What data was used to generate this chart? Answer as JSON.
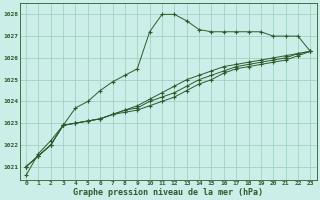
{
  "x": [
    0,
    1,
    2,
    3,
    4,
    5,
    6,
    7,
    8,
    9,
    10,
    11,
    12,
    13,
    14,
    15,
    16,
    17,
    18,
    19,
    20,
    21,
    22,
    23
  ],
  "line1": [
    1020.6,
    1021.6,
    1022.2,
    1022.9,
    1023.7,
    1024.0,
    1024.5,
    1024.9,
    1025.2,
    1025.5,
    1027.2,
    1028.0,
    1028.0,
    1027.7,
    1027.3,
    1027.2,
    1027.2,
    1027.2,
    1027.2,
    1027.2,
    1027.0,
    1027.0,
    1027.0,
    1026.3
  ],
  "line2": [
    1021.0,
    1021.5,
    1022.0,
    1022.9,
    1023.0,
    1023.1,
    1023.2,
    1023.4,
    1023.5,
    1023.6,
    1023.8,
    1024.0,
    1024.2,
    1024.5,
    1024.8,
    1025.0,
    1025.3,
    1025.5,
    1025.6,
    1025.7,
    1025.8,
    1025.9,
    1026.1,
    1026.3
  ],
  "line3": [
    1021.0,
    1021.5,
    1022.0,
    1022.9,
    1023.0,
    1023.1,
    1023.2,
    1023.4,
    1023.6,
    1023.7,
    1024.0,
    1024.2,
    1024.4,
    1024.7,
    1025.0,
    1025.2,
    1025.4,
    1025.6,
    1025.7,
    1025.8,
    1025.9,
    1026.0,
    1026.2,
    1026.3
  ],
  "line4": [
    1021.0,
    1021.5,
    1022.0,
    1022.9,
    1023.0,
    1023.1,
    1023.2,
    1023.4,
    1023.6,
    1023.8,
    1024.1,
    1024.4,
    1024.7,
    1025.0,
    1025.2,
    1025.4,
    1025.6,
    1025.7,
    1025.8,
    1025.9,
    1026.0,
    1026.1,
    1026.2,
    1026.3
  ],
  "line_color": "#2d5a2d",
  "bg_color": "#cceee8",
  "grid_color": "#99ccbb",
  "ylabel_values": [
    1021,
    1022,
    1023,
    1024,
    1025,
    1026,
    1027,
    1028
  ],
  "xlabel": "Graphe pression niveau de la mer (hPa)",
  "ylim": [
    1020.4,
    1028.5
  ],
  "xlim": [
    -0.5,
    23.5
  ]
}
